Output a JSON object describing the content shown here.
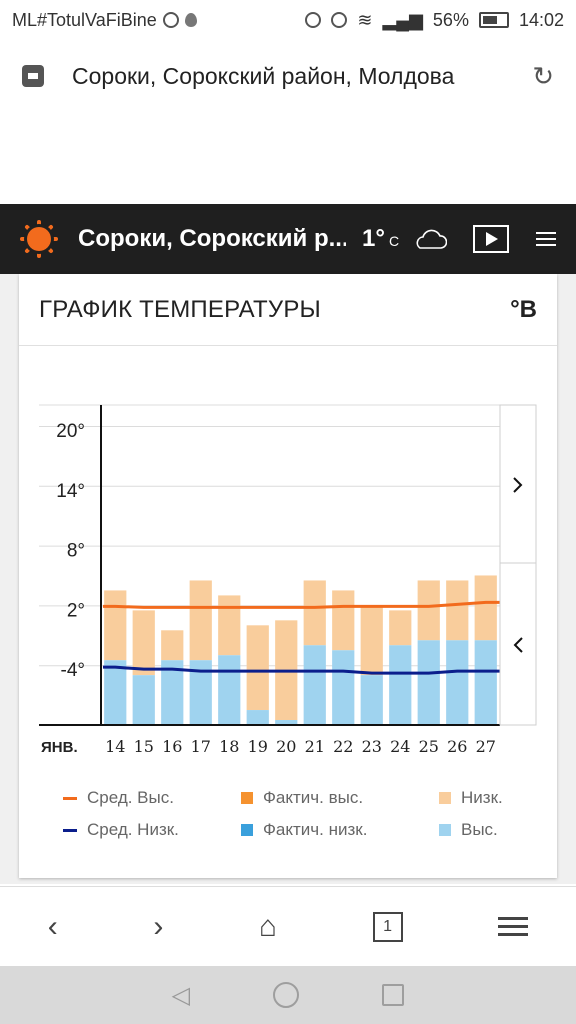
{
  "status_bar": {
    "left_text": "ML#TotulVaFiBine",
    "battery": "56%",
    "time": "14:02"
  },
  "browser": {
    "url_title": "Сороки, Сорокский район, Молдова",
    "tab_count": "1"
  },
  "site_header": {
    "city": "Сороки, Сорокский р...",
    "temperature": "1°",
    "unit": "C"
  },
  "card": {
    "title": "ГРАФИК ТЕМПЕРАТУРЫ",
    "unit_toggle": "°B"
  },
  "legend": {
    "avg_high": "Сред. Выс.",
    "actual_high": "Фактич. выс.",
    "low": "Низк.",
    "avg_low": "Сред. Низк.",
    "actual_low": "Фактич. низк.",
    "high": "Выс."
  },
  "colors": {
    "avg_high": "#f26b1d",
    "actual_high": "#f5922f",
    "forecast_high_bar": "#f9cd9c",
    "avg_low": "#0b1e8c",
    "actual_low": "#3aa0dc",
    "forecast_low_bar": "#9fd3ef"
  },
  "chart_data": {
    "type": "bar",
    "month_label": "ЯНВ.",
    "categories": [
      "14",
      "15",
      "16",
      "17",
      "18",
      "19",
      "20",
      "21",
      "22",
      "23",
      "24",
      "25",
      "26",
      "27"
    ],
    "y_ticks": [
      "20°",
      "14°",
      "8°",
      "2°",
      "-4°"
    ],
    "ylim": [
      -10,
      22
    ],
    "series": [
      {
        "name": "Выс.",
        "values": [
          3.5,
          1.5,
          -0.5,
          4.5,
          3,
          0,
          0.5,
          4.5,
          3.5,
          2,
          1.5,
          4.5,
          4.5,
          5
        ]
      },
      {
        "name": "Низк.",
        "values": [
          -3.5,
          -5,
          -3.5,
          -3.5,
          -3,
          -8.5,
          -9.5,
          -2,
          -2.5,
          -5,
          -2,
          -1.5,
          -1.5,
          -1.5
        ]
      },
      {
        "name": "Сред. Выс.",
        "values": [
          1.9,
          1.8,
          1.8,
          1.8,
          1.8,
          1.8,
          1.8,
          1.8,
          1.9,
          1.9,
          1.9,
          1.9,
          2.1,
          2.3
        ]
      },
      {
        "name": "Сред. Низк.",
        "values": [
          -4.2,
          -4.4,
          -4.4,
          -4.6,
          -4.6,
          -4.6,
          -4.6,
          -4.6,
          -4.6,
          -4.8,
          -4.8,
          -4.8,
          -4.6,
          -4.6
        ]
      }
    ],
    "grid": true,
    "legend_position": "bottom"
  }
}
